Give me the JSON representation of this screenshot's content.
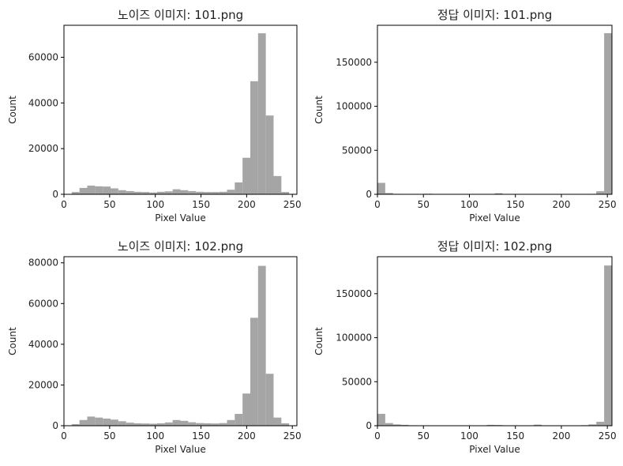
{
  "chart_data": [
    {
      "type": "bar",
      "title": "노이즈 이미지: 101.png",
      "xlabel": "Pixel Value",
      "ylabel": "Count",
      "xlim": [
        0,
        255
      ],
      "ylim": [
        0,
        74000
      ],
      "x_ticks": [
        0,
        50,
        100,
        150,
        200,
        250
      ],
      "y_ticks": [
        0,
        20000,
        40000,
        60000
      ],
      "bin_edges": [
        0,
        8.5,
        17,
        25.5,
        34,
        42.5,
        51,
        59.5,
        68,
        76.5,
        85,
        93.5,
        102,
        110.5,
        119,
        127.5,
        136,
        144.5,
        153,
        161.5,
        170,
        178.5,
        187,
        195.5,
        204,
        212.5,
        221,
        229.5,
        238,
        246.5,
        255
      ],
      "values": [
        100,
        1000,
        2800,
        3800,
        3500,
        3400,
        2600,
        1800,
        1400,
        1100,
        1000,
        800,
        1100,
        1300,
        2200,
        1800,
        1400,
        1100,
        1000,
        1000,
        1100,
        2000,
        5200,
        16000,
        49500,
        70500,
        34500,
        8000,
        1000,
        200
      ],
      "color": "#a5a5a5"
    },
    {
      "type": "bar",
      "title": "정답 이미지: 101.png",
      "xlabel": "Pixel Value",
      "ylabel": "Count",
      "xlim": [
        0,
        255
      ],
      "ylim": [
        0,
        192000
      ],
      "x_ticks": [
        0,
        50,
        100,
        150,
        200,
        250
      ],
      "y_ticks": [
        0,
        50000,
        100000,
        150000
      ],
      "bin_edges": [
        0,
        8.5,
        17,
        25.5,
        34,
        42.5,
        51,
        59.5,
        68,
        76.5,
        85,
        93.5,
        102,
        110.5,
        119,
        127.5,
        136,
        144.5,
        153,
        161.5,
        170,
        178.5,
        187,
        195.5,
        204,
        212.5,
        221,
        229.5,
        238,
        246.5,
        255
      ],
      "values": [
        13000,
        1500,
        500,
        400,
        300,
        400,
        700,
        300,
        200,
        300,
        400,
        200,
        300,
        200,
        300,
        1200,
        300,
        200,
        300,
        200,
        300,
        200,
        300,
        200,
        300,
        300,
        300,
        500,
        3500,
        183000
      ],
      "color": "#a5a5a5"
    },
    {
      "type": "bar",
      "title": "노이즈 이미지: 102.png",
      "xlabel": "Pixel Value",
      "ylabel": "Count",
      "xlim": [
        0,
        255
      ],
      "ylim": [
        0,
        83000
      ],
      "x_ticks": [
        0,
        50,
        100,
        150,
        200,
        250
      ],
      "y_ticks": [
        0,
        20000,
        40000,
        60000,
        80000
      ],
      "bin_edges": [
        0,
        8.5,
        17,
        25.5,
        34,
        42.5,
        51,
        59.5,
        68,
        76.5,
        85,
        93.5,
        102,
        110.5,
        119,
        127.5,
        136,
        144.5,
        153,
        161.5,
        170,
        178.5,
        187,
        195.5,
        204,
        212.5,
        221,
        229.5,
        238,
        246.5,
        255
      ],
      "values": [
        200,
        800,
        2800,
        4500,
        4000,
        3500,
        3000,
        2200,
        1500,
        1200,
        1100,
        1000,
        1200,
        1600,
        2800,
        2400,
        1700,
        1300,
        1200,
        1100,
        1300,
        2800,
        5800,
        15800,
        53000,
        78500,
        25500,
        4000,
        1200,
        200
      ],
      "color": "#a5a5a5"
    },
    {
      "type": "bar",
      "title": "정답 이미지: 102.png",
      "xlabel": "Pixel Value",
      "ylabel": "Count",
      "xlim": [
        0,
        255
      ],
      "ylim": [
        0,
        192000
      ],
      "x_ticks": [
        0,
        50,
        100,
        150,
        200,
        250
      ],
      "y_ticks": [
        0,
        50000,
        100000,
        150000
      ],
      "bin_edges": [
        0,
        8.5,
        17,
        25.5,
        34,
        42.5,
        51,
        59.5,
        68,
        76.5,
        85,
        93.5,
        102,
        110.5,
        119,
        127.5,
        136,
        144.5,
        153,
        161.5,
        170,
        178.5,
        187,
        195.5,
        204,
        212.5,
        221,
        229.5,
        238,
        246.5,
        255
      ],
      "values": [
        13500,
        3000,
        1500,
        1000,
        500,
        400,
        300,
        300,
        200,
        300,
        400,
        200,
        300,
        300,
        1000,
        800,
        300,
        300,
        200,
        300,
        1200,
        300,
        200,
        300,
        300,
        300,
        600,
        1500,
        4500,
        182000
      ],
      "color": "#a5a5a5"
    }
  ]
}
